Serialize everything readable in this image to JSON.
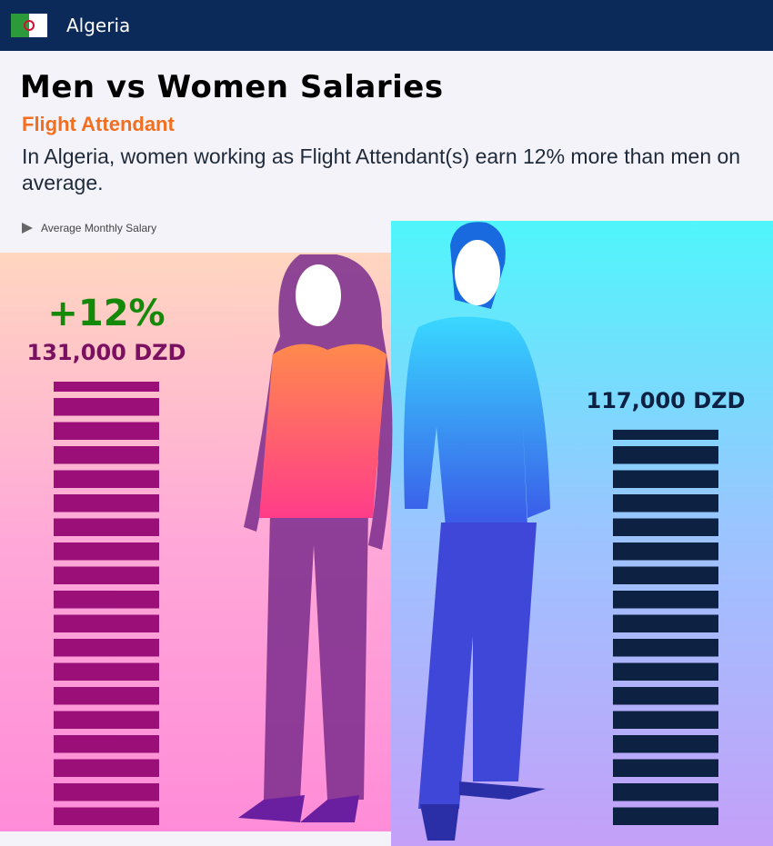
{
  "header": {
    "country": "Algeria"
  },
  "chart_data": {
    "type": "bar",
    "title": "Men vs Women Salaries",
    "subtitle": "Flight Attendant",
    "description": "In Algeria, women working as Flight Attendant(s) earn 12% more than men on average.",
    "legend": "Average Monthly Salary",
    "annotation": "+12%",
    "categories": [
      null,
      null
    ],
    "values": [
      131000,
      117000
    ],
    "value_labels": [
      "131,000 DZD",
      "117,000 DZD"
    ],
    "colors": [
      "#9a1078",
      "#0d2142"
    ]
  }
}
